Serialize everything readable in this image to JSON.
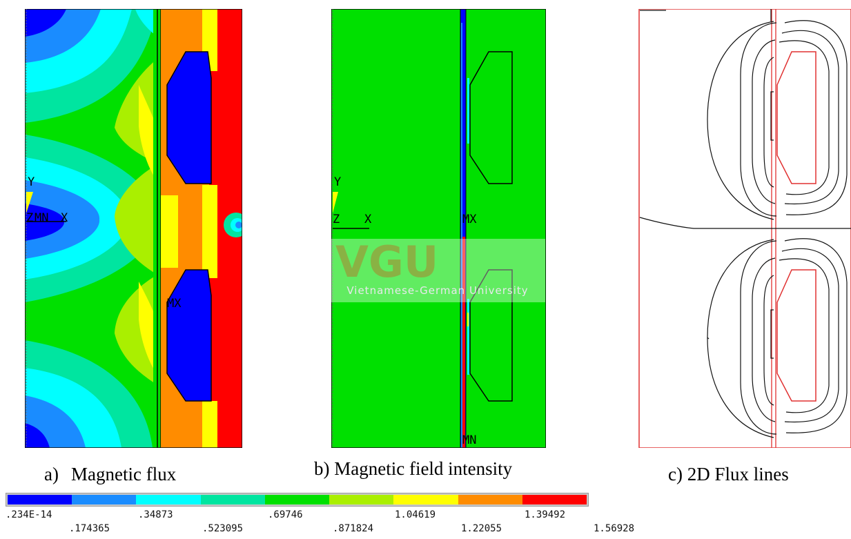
{
  "panels": {
    "a": {
      "prefix": "a)",
      "caption": "Magnetic flux",
      "labels": {
        "y": "Y",
        "z": "Z",
        "x": "X",
        "mn": "MN",
        "mx": "MX"
      }
    },
    "b": {
      "caption": "b) Magnetic field intensity",
      "labels": {
        "y": "Y",
        "z": "Z",
        "x": "X",
        "mx": "MX",
        "mn": "MN"
      }
    },
    "c": {
      "caption": "c) 2D Flux lines"
    }
  },
  "legend": {
    "colors": [
      "#0000ff",
      "#1a8cff",
      "#00ffff",
      "#00e5a0",
      "#00e000",
      "#aaef00",
      "#ffff00",
      "#ff8c00",
      "#ff0000"
    ],
    "ticks_top": [
      ".234E-14",
      ".34873",
      ".69746",
      "1.04619",
      "1.39492"
    ],
    "ticks_bottom": [
      ".174365",
      ".523095",
      ".871824",
      "1.22055",
      "1.56928"
    ]
  },
  "watermark": {
    "logo": "VGU",
    "subtitle": "Vietnamese-German University"
  }
}
